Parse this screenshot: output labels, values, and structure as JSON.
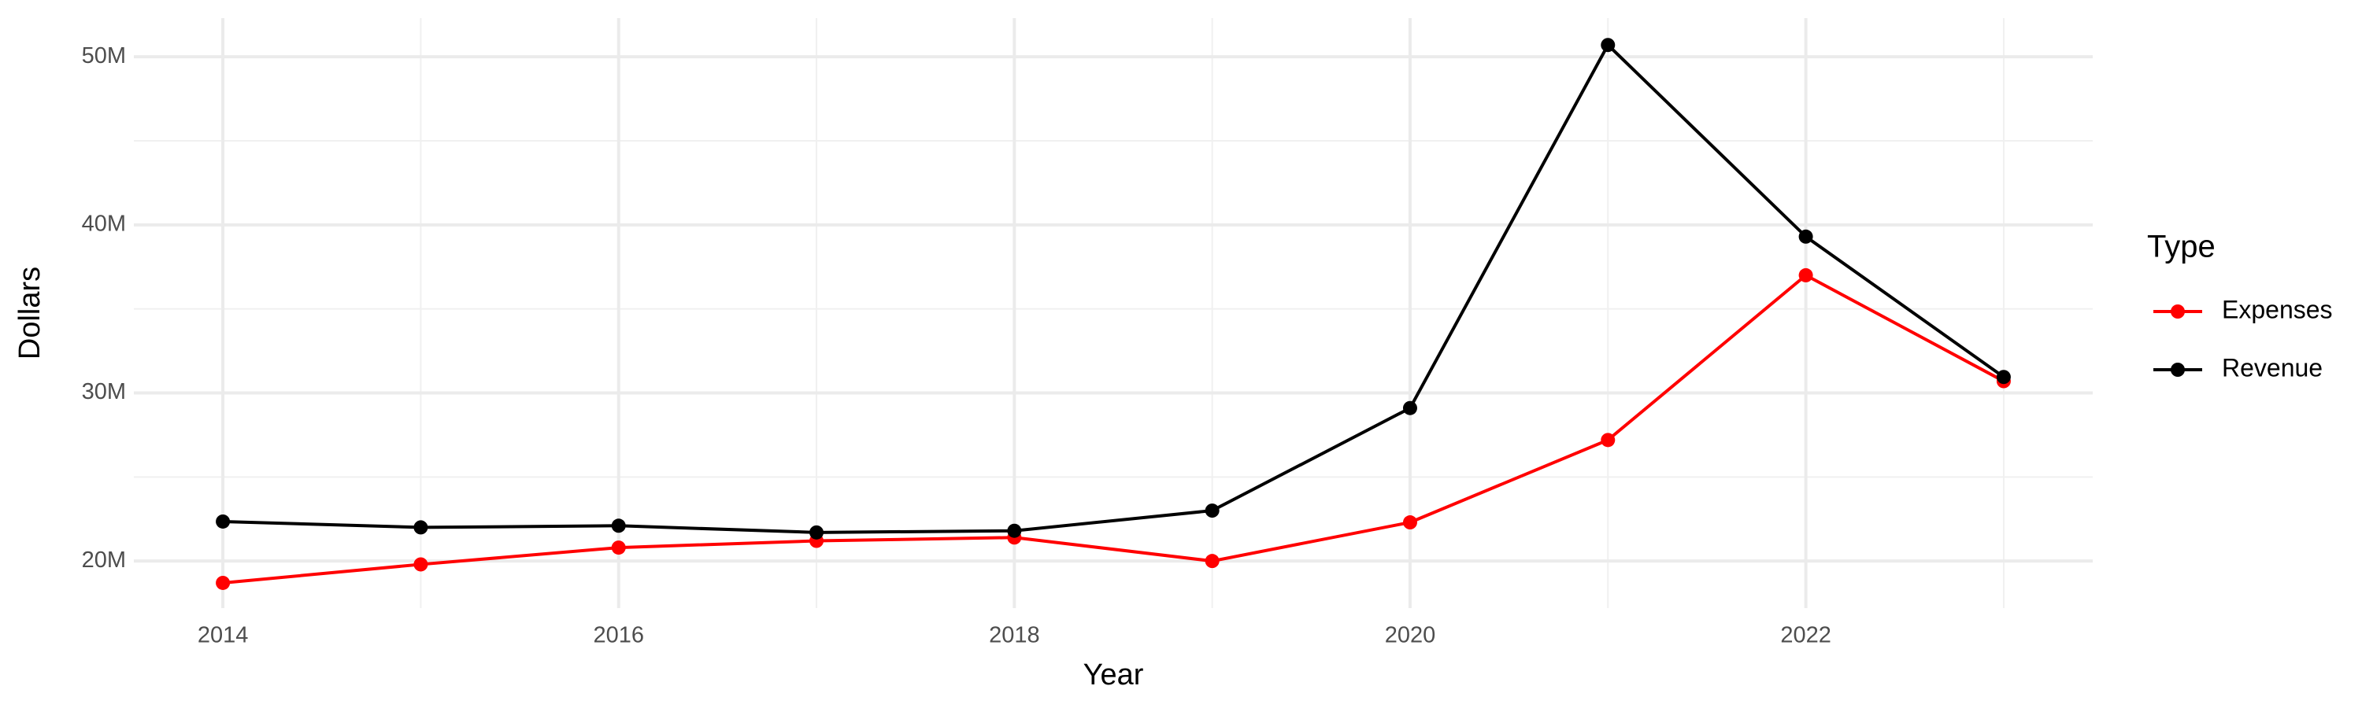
{
  "chart_data": {
    "type": "line",
    "x_label": "Year",
    "y_label": "Dollars",
    "x": [
      2014,
      2015,
      2016,
      2017,
      2018,
      2019,
      2020,
      2021,
      2022,
      2023
    ],
    "series": [
      {
        "name": "Expenses",
        "color": "#ff0000",
        "values": [
          18700000,
          19800000,
          20800000,
          21200000,
          21400000,
          20000000,
          22300000,
          27200000,
          37000000,
          30700000
        ]
      },
      {
        "name": "Revenue",
        "color": "#000000",
        "values": [
          22350000,
          22000000,
          22100000,
          21700000,
          21800000,
          23000000,
          29100000,
          50700000,
          39300000,
          30950000
        ]
      }
    ],
    "xlim": [
      2013.55,
      2023.45
    ],
    "ylim": [
      17200000,
      52300000
    ],
    "xticks": [
      2014,
      2016,
      2018,
      2020,
      2022
    ],
    "yticks": [
      {
        "value": 20000000,
        "label": "20M"
      },
      {
        "value": 30000000,
        "label": "30M"
      },
      {
        "value": 40000000,
        "label": "40M"
      },
      {
        "value": 50000000,
        "label": "50M"
      }
    ],
    "grid": true,
    "minor_grid": true,
    "legend_title": "Type",
    "legend_position": "right"
  }
}
